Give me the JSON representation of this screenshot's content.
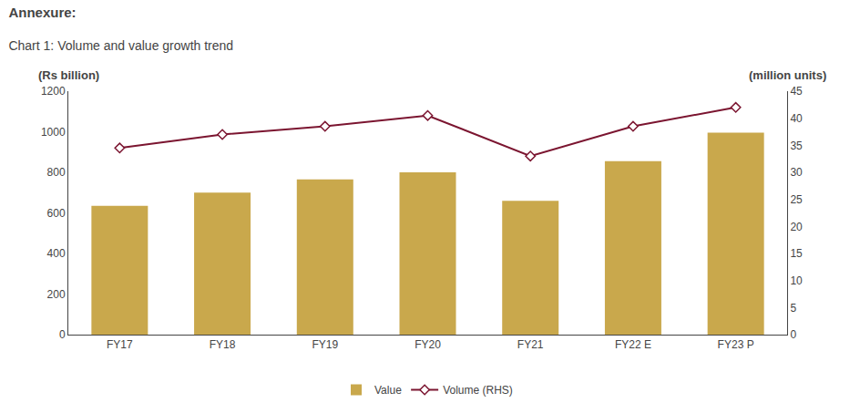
{
  "chart_data": {
    "type": "bar",
    "title": "Annexure:",
    "subtitle": "Chart 1: Volume and value growth trend",
    "ylabel": "(Rs billion)",
    "y2label": "(million units)",
    "categories": [
      "FY17",
      "FY18",
      "FY19",
      "FY20",
      "FY21",
      "FY22 E",
      "FY23 P"
    ],
    "series": [
      {
        "name": "Value",
        "type": "bar",
        "color": "#C9A84C",
        "values": [
          635,
          700,
          765,
          800,
          660,
          855,
          995
        ]
      },
      {
        "name": "Volume (RHS)",
        "type": "line",
        "axis": "y2",
        "color": "#7B1530",
        "marker": "diamond",
        "line_style": "solid",
        "values": [
          34.5,
          37.0,
          38.5,
          40.5,
          33.0,
          38.5,
          42.0
        ]
      }
    ],
    "ylim": [
      0,
      1200
    ],
    "yticks": [
      0,
      200,
      400,
      600,
      800,
      1000,
      1200
    ],
    "y2lim": [
      0,
      45
    ],
    "y2ticks": [
      0,
      5,
      10,
      15,
      20,
      25,
      30,
      35,
      40,
      45
    ],
    "grid": false,
    "legend": "bottom"
  }
}
